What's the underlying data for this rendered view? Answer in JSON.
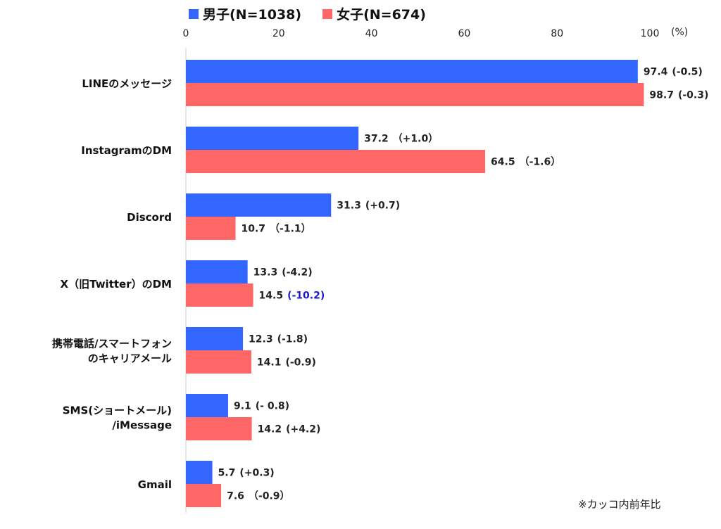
{
  "chart_data": {
    "type": "bar",
    "orientation": "horizontal",
    "legend": [
      {
        "label": "男子(N=1038)",
        "color": "#3366ff"
      },
      {
        "label": "女子(N=674)",
        "color": "#ff6666"
      }
    ],
    "unit_label": "(%)",
    "xlim": [
      0,
      100
    ],
    "xticks": [
      0,
      20,
      40,
      60,
      80,
      100
    ],
    "categories": [
      [
        "LINEのメッセージ"
      ],
      [
        "InstagramのDM"
      ],
      [
        "Discord"
      ],
      [
        "X（旧Twitter）のDM"
      ],
      [
        "携帯電話/スマートフォン",
        "のキャリアメール"
      ],
      [
        "SMS(ショートメール)",
        "/iMessage"
      ],
      [
        "Gmail"
      ]
    ],
    "series": [
      {
        "name": "男子(N=1038)",
        "color": "#3366ff",
        "values": [
          97.4,
          37.2,
          31.3,
          13.3,
          12.3,
          9.1,
          5.7
        ],
        "value_labels": [
          "97.4",
          "37.2",
          "31.3",
          "13.3",
          "12.3",
          "9.1",
          "5.7"
        ],
        "change_labels": [
          "(-0.5)",
          "（+1.0）",
          "(+0.7)",
          "(-4.2)",
          "(-1.8)",
          "(- 0.8)",
          "(+0.3)"
        ]
      },
      {
        "name": "女子(N=674)",
        "color": "#ff6666",
        "values": [
          98.7,
          64.5,
          10.7,
          14.5,
          14.1,
          14.2,
          7.6
        ],
        "value_labels": [
          "98.7",
          "64.5",
          "10.7",
          "14.5",
          "14.1",
          "14.2",
          "7.6"
        ],
        "change_labels": [
          "(-0.3)",
          "（-1.6）",
          "（-1.1）",
          "(-10.2)",
          "(-0.9)",
          "(+4.2)",
          "（-0.9）"
        ]
      }
    ],
    "highlighted_change": {
      "series": 1,
      "index": 3,
      "color": "#1a1acc"
    },
    "footnote": "※カッコ内前年比"
  }
}
